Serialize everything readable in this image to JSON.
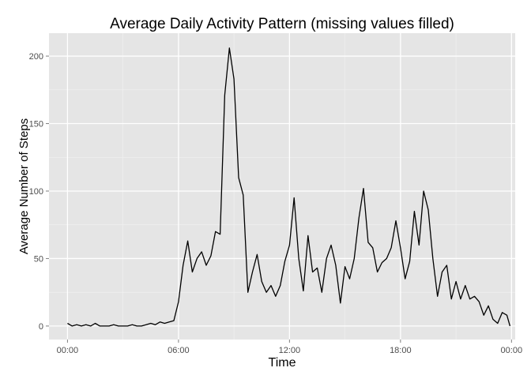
{
  "chart_data": {
    "type": "line",
    "title": "Average Daily Activity Pattern (missing values filled)",
    "xlabel": "Time",
    "ylabel": "Average Number of Steps",
    "xlim": [
      -1,
      24.2
    ],
    "ylim": [
      -10,
      217
    ],
    "x_ticks": [
      0,
      6,
      12,
      18,
      24
    ],
    "x_tick_labels": [
      "00:00",
      "06:00",
      "12:00",
      "18:00",
      "00:00"
    ],
    "y_ticks": [
      0,
      50,
      100,
      150,
      200
    ],
    "y_tick_labels": [
      "0",
      "50",
      "100",
      "150",
      "200"
    ],
    "grid": true,
    "background": "#e5e5e5",
    "line_color": "#000000",
    "series": [
      {
        "x": [
          0.0,
          0.25,
          0.5,
          0.75,
          1.0,
          1.25,
          1.5,
          1.75,
          2.0,
          2.25,
          2.5,
          2.75,
          3.0,
          3.25,
          3.5,
          3.75,
          4.0,
          4.25,
          4.5,
          4.75,
          5.0,
          5.25,
          5.5,
          5.75,
          6.0,
          6.25,
          6.5,
          6.75,
          7.0,
          7.25,
          7.5,
          7.75,
          8.0,
          8.25,
          8.5,
          8.75,
          9.0,
          9.25,
          9.5,
          9.75,
          10.0,
          10.25,
          10.5,
          10.75,
          11.0,
          11.25,
          11.5,
          11.75,
          12.0,
          12.25,
          12.5,
          12.75,
          13.0,
          13.25,
          13.5,
          13.75,
          14.0,
          14.25,
          14.5,
          14.75,
          15.0,
          15.25,
          15.5,
          15.75,
          16.0,
          16.25,
          16.5,
          16.75,
          17.0,
          17.25,
          17.5,
          17.75,
          18.0,
          18.25,
          18.5,
          18.75,
          19.0,
          19.25,
          19.5,
          19.75,
          20.0,
          20.25,
          20.5,
          20.75,
          21.0,
          21.25,
          21.5,
          21.75,
          22.0,
          22.25,
          22.5,
          22.75,
          23.0,
          23.25,
          23.5,
          23.75,
          23.92
        ],
        "y": [
          2,
          0,
          1,
          0,
          1,
          0,
          2,
          0,
          0,
          0,
          1,
          0,
          0,
          0,
          1,
          0,
          0,
          1,
          2,
          1,
          3,
          2,
          3,
          4,
          18,
          45,
          63,
          40,
          50,
          55,
          45,
          52,
          70,
          68,
          171,
          206,
          183,
          110,
          97,
          25,
          40,
          53,
          33,
          25,
          30,
          22,
          30,
          48,
          60,
          95,
          50,
          26,
          67,
          40,
          43,
          25,
          50,
          60,
          45,
          17,
          44,
          35,
          50,
          80,
          102,
          62,
          58,
          40,
          47,
          50,
          58,
          78,
          58,
          35,
          48,
          85,
          60,
          100,
          86,
          50,
          22,
          40,
          45,
          20,
          33,
          20,
          30,
          20,
          22,
          18,
          8,
          15,
          5,
          2,
          10,
          8,
          0
        ]
      }
    ]
  }
}
